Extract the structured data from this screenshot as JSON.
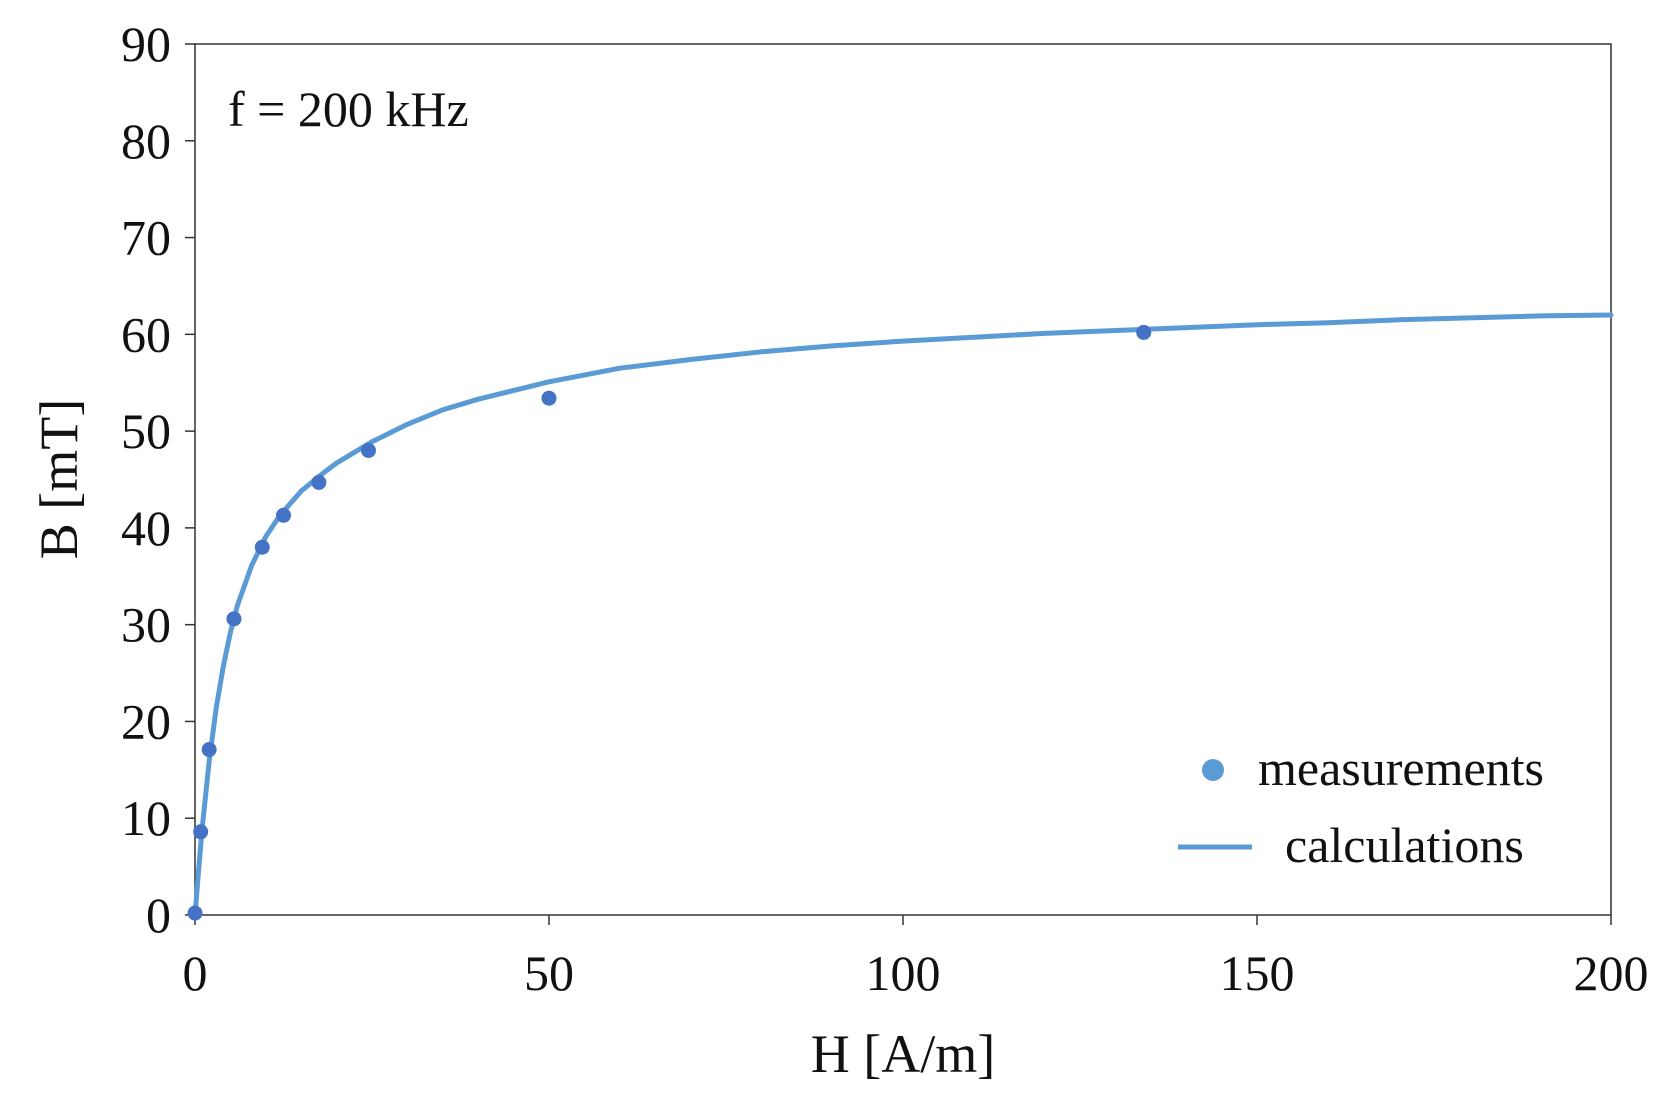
{
  "chart_data": {
    "type": "scatter",
    "title": "",
    "annotation": "f = 200 kHz",
    "xlabel": "H [A/m]",
    "ylabel": "B [mT]",
    "xlim": [
      0,
      200
    ],
    "ylim": [
      0,
      90
    ],
    "xticks": [
      0,
      50,
      100,
      150,
      200
    ],
    "yticks": [
      0,
      10,
      20,
      30,
      40,
      50,
      60,
      70,
      80,
      90
    ],
    "grid": false,
    "legend_position": "bottom-right",
    "series": [
      {
        "name": "measurements",
        "kind": "scatter",
        "color": "#4472C4",
        "legend_color": "#5B9BD5",
        "x": [
          0,
          0.8,
          2.0,
          5.5,
          9.5,
          12.5,
          17.5,
          24.5,
          50,
          134
        ],
        "y": [
          0.2,
          8.6,
          17.1,
          30.6,
          38.0,
          41.3,
          44.7,
          48.0,
          53.4,
          60.2
        ]
      },
      {
        "name": "calculations",
        "kind": "line",
        "color": "#5B9BD5",
        "x": [
          0,
          0.5,
          1,
          2,
          3,
          4,
          5,
          6,
          8,
          10,
          12,
          15,
          18,
          20,
          25,
          30,
          35,
          40,
          50,
          60,
          70,
          80,
          90,
          100,
          110,
          120,
          130,
          140,
          150,
          160,
          170,
          180,
          190,
          200
        ],
        "y": [
          0,
          4.5,
          8.9,
          15.9,
          21.4,
          25.7,
          29.2,
          32.0,
          36.1,
          39.1,
          41.3,
          43.8,
          45.6,
          46.7,
          48.9,
          50.7,
          52.2,
          53.3,
          55.1,
          56.5,
          57.4,
          58.2,
          58.8,
          59.3,
          59.7,
          60.1,
          60.4,
          60.7,
          61.0,
          61.2,
          61.5,
          61.7,
          61.9,
          62.0
        ]
      }
    ]
  }
}
